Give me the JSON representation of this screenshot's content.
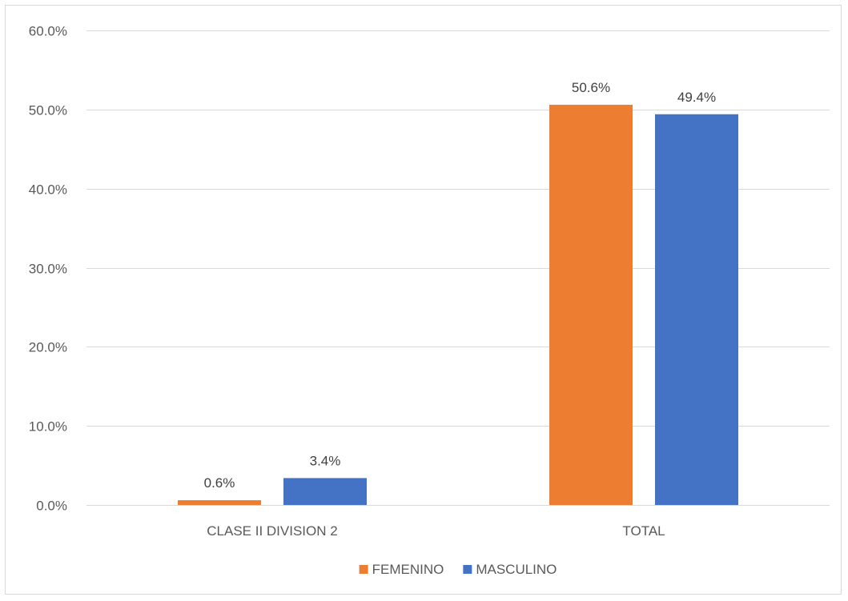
{
  "chart_data": {
    "type": "bar",
    "categories": [
      "CLASE II DIVISION 2",
      "TOTAL"
    ],
    "series": [
      {
        "name": "FEMENINO",
        "values": [
          0.6,
          50.6
        ],
        "color": "#ED7D31"
      },
      {
        "name": "MASCULINO",
        "values": [
          3.4,
          49.4
        ],
        "color": "#4472C4"
      }
    ],
    "value_labels": [
      [
        "0.6%",
        "50.6%"
      ],
      [
        "3.4%",
        "49.4%"
      ]
    ],
    "ylim": [
      0,
      60
    ],
    "y_ticks": [
      {
        "value": 0,
        "label": "0.0%"
      },
      {
        "value": 10,
        "label": "10.0%"
      },
      {
        "value": 20,
        "label": "20.0%"
      },
      {
        "value": 30,
        "label": "30.0%"
      },
      {
        "value": 40,
        "label": "40.0%"
      },
      {
        "value": 50,
        "label": "50.0%"
      },
      {
        "value": 60,
        "label": "60.0%"
      }
    ],
    "title": "",
    "xlabel": "",
    "ylabel": "",
    "grid": true,
    "gridline_color": "#d9d9d9",
    "legend_position": "bottom"
  }
}
